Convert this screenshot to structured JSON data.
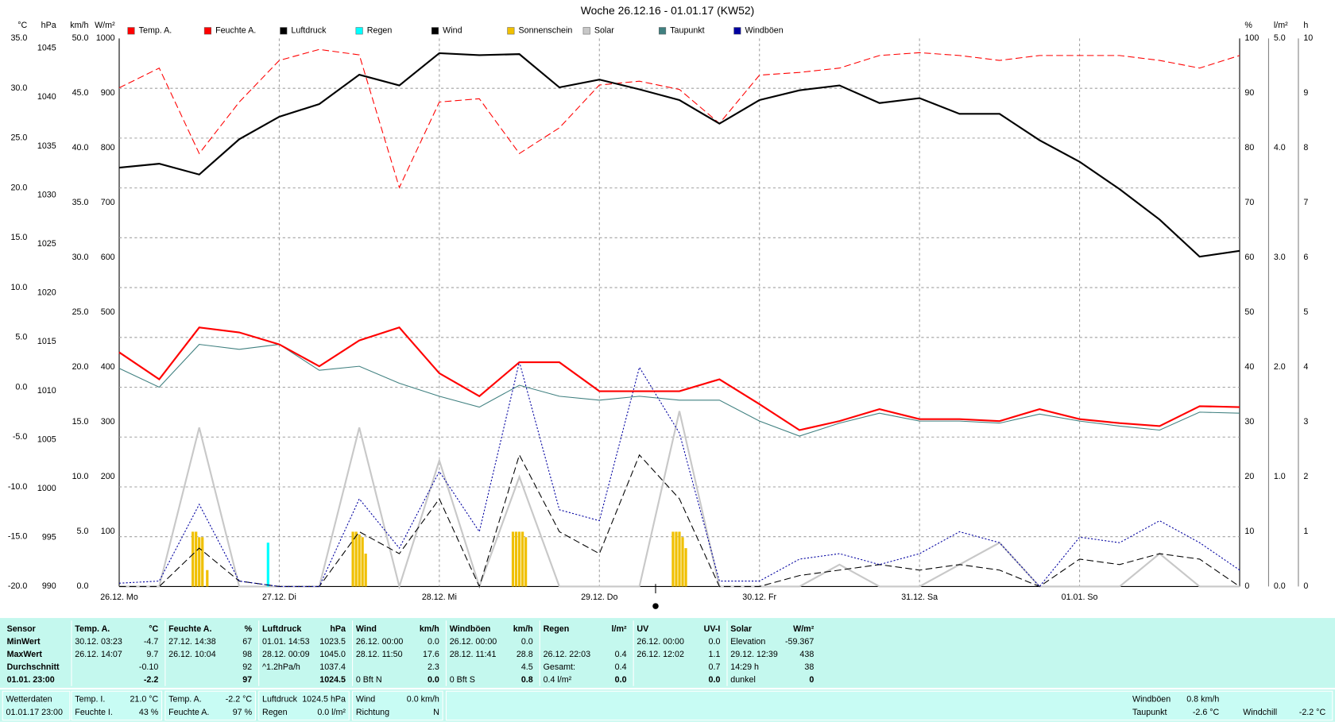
{
  "chart_data": {
    "type": "line",
    "title": "Woche 26.12.16 - 01.01.17 (KW52)",
    "grid": true,
    "x": [
      0,
      0.25,
      0.5,
      0.75,
      1,
      1.25,
      1.5,
      1.75,
      2,
      2.25,
      2.5,
      2.75,
      3,
      3.25,
      3.5,
      3.75,
      4,
      4.25,
      4.5,
      4.75,
      5,
      5.25,
      5.5,
      5.75,
      6,
      6.25,
      6.5,
      6.75,
      7
    ],
    "xlim": [
      0,
      7
    ],
    "xticks": [
      {
        "value": 0,
        "label": "26.12. Mo"
      },
      {
        "value": 1,
        "label": "27.12. Di"
      },
      {
        "value": 2,
        "label": "28.12. Mi"
      },
      {
        "value": 3,
        "label": "29.12. Do"
      },
      {
        "value": 4,
        "label": "30.12. Fr"
      },
      {
        "value": 5,
        "label": "31.12. Sa"
      },
      {
        "value": 6,
        "label": "01.01. So"
      }
    ],
    "axes": [
      {
        "label": "°C",
        "side": "left",
        "color": "#ff0000",
        "lim": [
          -20,
          35
        ],
        "ticks": [
          {
            "value": 35,
            "label": "35.0"
          },
          {
            "value": 30,
            "label": "30.0"
          },
          {
            "value": 25,
            "label": "25.0"
          },
          {
            "value": 20,
            "label": "20.0"
          },
          {
            "value": 15,
            "label": "15.0"
          },
          {
            "value": 10,
            "label": "10.0"
          },
          {
            "value": 5,
            "label": "5.0"
          },
          {
            "value": 0,
            "label": "0.0"
          },
          {
            "value": -5,
            "label": "-5.0"
          },
          {
            "value": -10,
            "label": "-10.0"
          },
          {
            "value": -15,
            "label": "-15.0"
          },
          {
            "value": -20,
            "label": "-20.0"
          }
        ]
      },
      {
        "label": "hPa",
        "side": "left",
        "color": "#000000",
        "lim": [
          990,
          1046
        ],
        "ticks": [
          1045,
          1040,
          1035,
          1030,
          1025,
          1020,
          1015,
          1010,
          1005,
          1000,
          995,
          990
        ]
      },
      {
        "label": "km/h",
        "side": "left",
        "color": "#000000",
        "lim": [
          0,
          50
        ],
        "ticks": [
          {
            "value": 50,
            "label": "50.0"
          },
          {
            "value": 45,
            "label": "45.0"
          },
          {
            "value": 40,
            "label": "40.0"
          },
          {
            "value": 35,
            "label": "35.0"
          },
          {
            "value": 30,
            "label": "30.0"
          },
          {
            "value": 25,
            "label": "25.0"
          },
          {
            "value": 20,
            "label": "20.0"
          },
          {
            "value": 15,
            "label": "15.0"
          },
          {
            "value": 10,
            "label": "10.0"
          },
          {
            "value": 5,
            "label": "5.0"
          },
          {
            "value": 0,
            "label": "0.0"
          }
        ]
      },
      {
        "label": "W/m²",
        "side": "left",
        "color": "#c0c0c0",
        "lim": [
          0,
          1000
        ],
        "ticks": [
          1000,
          900,
          800,
          700,
          600,
          500,
          400,
          300,
          200,
          100
        ]
      },
      {
        "label": "%",
        "side": "right",
        "color": "#ff0000",
        "lim": [
          0,
          100
        ],
        "ticks": [
          100,
          90,
          80,
          70,
          60,
          50,
          40,
          30,
          20,
          10,
          0
        ]
      },
      {
        "label": "l/m²",
        "side": "right",
        "color": "#00e0e0",
        "lim": [
          0,
          5
        ],
        "ticks": [
          {
            "value": 5,
            "label": "5.0"
          },
          {
            "value": 4,
            "label": "4.0"
          },
          {
            "value": 3,
            "label": "3.0"
          },
          {
            "value": 2,
            "label": "2.0"
          },
          {
            "value": 1,
            "label": "1.0"
          },
          {
            "value": 0,
            "label": "0.0"
          }
        ]
      },
      {
        "label": "h",
        "side": "right",
        "color": "#e0b000",
        "lim": [
          0,
          10
        ],
        "ticks": [
          10,
          9,
          8,
          7,
          6,
          5,
          4,
          3,
          2,
          1,
          0
        ]
      }
    ],
    "series": [
      {
        "name": "Temp. A.",
        "color": "#ff0000",
        "axis": 0,
        "line_style": "solid",
        "bold": true,
        "values": [
          3.5,
          0.8,
          6.0,
          5.5,
          4.3,
          2.1,
          4.7,
          6.0,
          1.4,
          -0.9,
          2.5,
          2.5,
          -0.4,
          -0.4,
          -0.4,
          0.8,
          -1.7,
          -4.3,
          -3.4,
          -2.2,
          -3.2,
          -3.2,
          -3.4,
          -2.2,
          -3.2,
          -3.6,
          -3.9,
          -1.9,
          -2.0
        ]
      },
      {
        "name": "Feuchte A.",
        "color": "#ff0000",
        "axis": 4,
        "line_style": "dashed",
        "bold": false,
        "values": [
          91,
          94.6,
          79,
          88.4,
          96,
          98,
          97,
          72.8,
          88.4,
          89,
          79,
          83.7,
          91.5,
          92.2,
          90.7,
          84.5,
          93.3,
          93.8,
          94.6,
          96.9,
          97.4,
          96.9,
          96,
          96.9,
          96.9,
          96.9,
          96,
          94.6,
          96.9
        ]
      },
      {
        "name": "Luftdruck",
        "color": "#000000",
        "axis": 1,
        "line_style": "solid",
        "bold": true,
        "values": [
          1032.8,
          1033.2,
          1032.1,
          1035.7,
          1038,
          1039.3,
          1042.3,
          1041.2,
          1044.5,
          1044.3,
          1044.4,
          1041,
          1041.8,
          1040.8,
          1039.7,
          1037.3,
          1039.7,
          1040.7,
          1041.2,
          1039.4,
          1039.9,
          1038.3,
          1038.3,
          1035.6,
          1033.4,
          1030.6,
          1027.5,
          1023.7,
          1024.3
        ]
      },
      {
        "name": "Regen",
        "color": "#00ffff",
        "axis": 5,
        "kind": "bar",
        "x": [
          0.93
        ],
        "values": [
          0.4
        ]
      },
      {
        "name": "Wind",
        "color": "#000000",
        "axis": 2,
        "line_style": "dashed",
        "bold": false,
        "values": [
          0,
          0,
          3.5,
          0.5,
          0,
          0,
          5,
          3,
          8,
          0,
          12,
          5,
          3,
          12,
          8,
          0,
          0,
          1,
          1.5,
          2,
          1.5,
          2,
          1.5,
          0,
          2.5,
          2,
          3,
          2.5,
          0
        ]
      },
      {
        "name": "Sonnenschein",
        "color": "#f0c000",
        "axis": 6,
        "kind": "bar",
        "x": [
          0.46,
          0.48,
          0.5,
          0.52,
          0.55,
          1.46,
          1.48,
          1.5,
          1.52,
          1.54,
          2.46,
          2.48,
          2.5,
          2.52,
          2.54,
          3.46,
          3.48,
          3.5,
          3.52,
          3.54
        ],
        "values": [
          1,
          1,
          0.9,
          0.9,
          0.3,
          1,
          1,
          0.95,
          0.9,
          0.6,
          1,
          1,
          1,
          1,
          0.9,
          1,
          1,
          1,
          0.9,
          0.7
        ]
      },
      {
        "name": "Solar",
        "color": "#c8c8c8",
        "axis": 3,
        "line_style": "solid",
        "bold": true,
        "values": [
          0,
          0,
          290,
          0,
          0,
          0,
          290,
          0,
          230,
          0,
          200,
          0,
          0,
          0,
          320,
          0,
          0,
          0,
          40,
          0,
          0,
          40,
          80,
          0,
          0,
          0,
          60,
          0,
          0
        ]
      },
      {
        "name": "Taupunkt",
        "color": "#408080",
        "axis": 0,
        "line_style": "solid",
        "bold": false,
        "values": [
          1.9,
          0,
          4.3,
          3.8,
          4.3,
          1.7,
          2.1,
          0.4,
          -0.9,
          -2,
          0.2,
          -0.9,
          -1.3,
          -0.9,
          -1.3,
          -1.3,
          -3.4,
          -4.9,
          -3.6,
          -2.6,
          -3.4,
          -3.4,
          -3.6,
          -2.7,
          -3.4,
          -3.9,
          -4.3,
          -2.5,
          -2.6
        ]
      },
      {
        "name": "Windböen",
        "color": "#0000a0",
        "axis": 2,
        "line_style": "dotted",
        "bold": false,
        "values": [
          0.3,
          0.5,
          7.5,
          0.5,
          0,
          0,
          8,
          3.5,
          10.5,
          5,
          20.5,
          7,
          6,
          20,
          14,
          0.5,
          0.5,
          2.5,
          3,
          2,
          3,
          5,
          4,
          0,
          4.5,
          4,
          6,
          4,
          1.5
        ]
      }
    ]
  },
  "table": {
    "row_labels": [
      "Sensor",
      "MinWert",
      "MaxWert",
      "Durchschnitt",
      "01.01. 23:00"
    ],
    "blocks": [
      {
        "title": "Temp. A.",
        "unit": "°C",
        "rows": [
          [
            "30.12.  03:23",
            "-4.7"
          ],
          [
            "26.12.  14:07",
            "9.7"
          ],
          [
            null,
            "-0.10"
          ],
          [
            null,
            "-2.2"
          ]
        ]
      },
      {
        "title": "Feuchte A.",
        "unit": "%",
        "rows": [
          [
            "27.12.  14:38",
            "67"
          ],
          [
            "26.12.  10:04",
            "98"
          ],
          [
            null,
            "92"
          ],
          [
            null,
            "97"
          ]
        ]
      },
      {
        "title": "Luftdruck",
        "unit": "hPa",
        "rows": [
          [
            "01.01.  14:53",
            "1023.5"
          ],
          [
            "28.12.  00:09",
            "1045.0"
          ],
          [
            "^1.2hPa/h",
            "1037.4"
          ],
          [
            null,
            "1024.5"
          ]
        ]
      },
      {
        "title": "Wind",
        "unit": "km/h",
        "rows": [
          [
            "26.12.  00:00",
            "0.0"
          ],
          [
            "28.12.  11:50",
            "17.6"
          ],
          [
            null,
            "2.3"
          ],
          [
            "0 Bft N",
            "0.0"
          ]
        ]
      },
      {
        "title": "Windböen",
        "unit": "km/h",
        "rows": [
          [
            "26.12.  00:00",
            "0.0"
          ],
          [
            "28.12.  11:41",
            "28.8"
          ],
          [
            null,
            "4.5"
          ],
          [
            "0 Bft S",
            "0.8"
          ]
        ]
      },
      {
        "title": "Regen",
        "unit": "l/m²",
        "rows": [
          [
            null,
            null
          ],
          [
            "26.12.  22:03",
            "0.4"
          ],
          [
            "Gesamt:",
            "0.4"
          ],
          [
            "0.4 l/m²",
            "0.0"
          ]
        ]
      },
      {
        "title": "UV",
        "unit": "UV-I",
        "rows": [
          [
            "26.12.  00:00",
            "0.0"
          ],
          [
            "26.12.  12:02",
            "1.1"
          ],
          [
            null,
            "0.7"
          ],
          [
            null,
            "0.0"
          ]
        ]
      },
      {
        "title": "Solar",
        "unit": "W/m²",
        "rows": [
          [
            "Elevation",
            "-59.367"
          ],
          [
            "29.12.  12:39",
            "438"
          ],
          [
            "14:29 h",
            "38"
          ],
          [
            "dunkel",
            "0"
          ]
        ]
      }
    ]
  },
  "footer": {
    "station": [
      "Wetterdaten",
      "01.01.17 23:00"
    ],
    "groups": [
      [
        [
          "Temp. I.",
          "21.0 °C"
        ],
        [
          "Feuchte I.",
          "43 %"
        ]
      ],
      [
        [
          "Temp. A.",
          "-2.2 °C"
        ],
        [
          "Feuchte A.",
          "97 %"
        ]
      ],
      [
        [
          "Luftdruck",
          "1024.5 hPa"
        ],
        [
          "Regen",
          "0.0 l/m²"
        ]
      ],
      [
        [
          "Wind",
          "0.0 km/h"
        ],
        [
          "Richtung",
          "N"
        ]
      ]
    ],
    "right": [
      [
        "Windböen",
        "0.8 km/h"
      ],
      [
        "Taupunkt",
        "-2.6 °C"
      ],
      [
        "Windchill",
        "-2.2 °C"
      ]
    ]
  }
}
